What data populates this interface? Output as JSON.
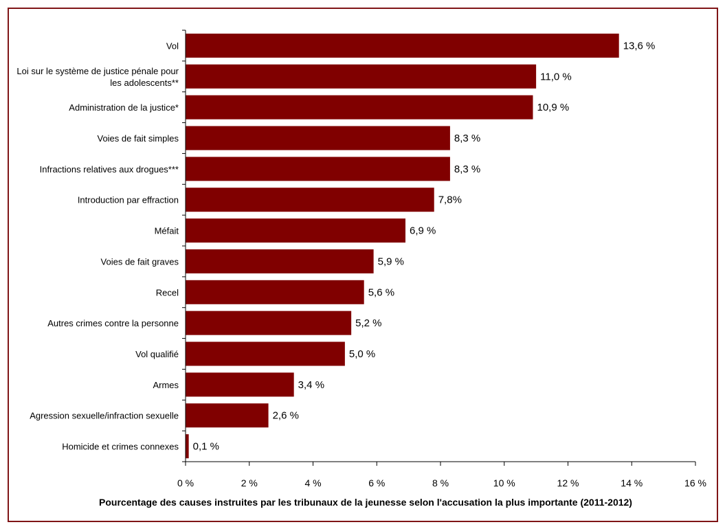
{
  "chart_data": {
    "type": "bar",
    "orientation": "horizontal",
    "categories": [
      [
        "Vol"
      ],
      [
        "Loi sur le système de justice pénale pour",
        "les adolescents**"
      ],
      [
        "Administration de la justice*"
      ],
      [
        "Voies de fait simples"
      ],
      [
        "Infractions relatives aux drogues***"
      ],
      [
        "Introduction par effraction"
      ],
      [
        "Méfait"
      ],
      [
        "Voies de fait graves"
      ],
      [
        "Recel"
      ],
      [
        "Autres crimes contre la personne"
      ],
      [
        "Vol qualifié"
      ],
      [
        "Armes"
      ],
      [
        "Agression sexuelle/infraction sexuelle"
      ],
      [
        "Homicide et crimes connexes"
      ]
    ],
    "values": [
      13.6,
      11.0,
      10.9,
      8.3,
      8.3,
      7.8,
      6.9,
      5.9,
      5.6,
      5.2,
      5.0,
      3.4,
      2.6,
      0.1
    ],
    "data_labels": [
      "13,6 %",
      "11,0 %",
      "10,9 %",
      "8,3 %",
      "8,3 %",
      "7,8%",
      "6,9 %",
      "5,9 %",
      "5,6 %",
      "5,2 %",
      "5,0 %",
      "3,4 %",
      "2,6 %",
      "0,1 %"
    ],
    "xlim": [
      0,
      16
    ],
    "x_ticks": [
      0,
      2,
      4,
      6,
      8,
      10,
      12,
      14,
      16
    ],
    "x_tick_labels": [
      "0 %",
      "2 %",
      "4 %",
      "6 %",
      "8 %",
      "10 %",
      "12 %",
      "14 %",
      "16 %"
    ],
    "xlabel": "Pourcentage des causes instruites par les tribunaux de la jeunesse selon l'accusation la plus importante (2011-2012)",
    "ylabel": "",
    "title": "",
    "grid": false,
    "legend": "none",
    "bar_color": "#800000",
    "frame_color": "#7f1416"
  }
}
